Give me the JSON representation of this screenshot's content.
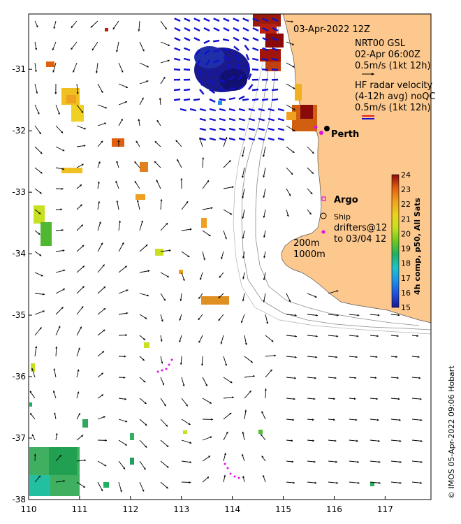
{
  "map": {
    "date_label": "03-Apr-2022 12Z",
    "gsl_label": [
      "NRT00 GSL",
      "02-Apr 06:00Z",
      "0.5m/s (1kt 12h)"
    ],
    "hf_label": [
      "HF radar velocity",
      "(4-12h avg) noQC",
      "0.5m/s (1kt 12h)"
    ],
    "city_label": "Perth",
    "argo_label": "Argo",
    "ship_label": "Ship",
    "drifters_label": [
      "drifters@12",
      "to 03/04 12"
    ],
    "isobath_labels": [
      "200m",
      "1000m"
    ],
    "credit": "© IMOS 05-Apr-2022 09:06 Hobart",
    "colorbar_title": "4h comp, p50, All Sats",
    "colors": {
      "land": "#FCC88E",
      "hf_blue": "#1010D0",
      "hf_red": "#E02020",
      "argo": "#E010E0",
      "colormap": [
        "#1A1A8C",
        "#1F4FD8",
        "#1E90E8",
        "#22C0C8",
        "#20B060",
        "#70C820",
        "#C8E020",
        "#F0D020",
        "#F0A020",
        "#E06010",
        "#B82010",
        "#8A0A0A"
      ]
    }
  },
  "chart_data": {
    "type": "map",
    "xlim": [
      110,
      117.9
    ],
    "ylim": [
      -38,
      -30.1
    ],
    "xticks": [
      110,
      111,
      112,
      113,
      114,
      115,
      116,
      117
    ],
    "yticks": [
      -31,
      -32,
      -33,
      -34,
      -35,
      -36,
      -37,
      -38
    ],
    "colorbar": {
      "min": 15,
      "max": 24,
      "ticks": [
        15,
        16,
        17,
        18,
        19,
        20,
        21,
        22,
        23,
        24
      ]
    },
    "perth": {
      "lon": 115.86,
      "lat": -31.95
    }
  }
}
